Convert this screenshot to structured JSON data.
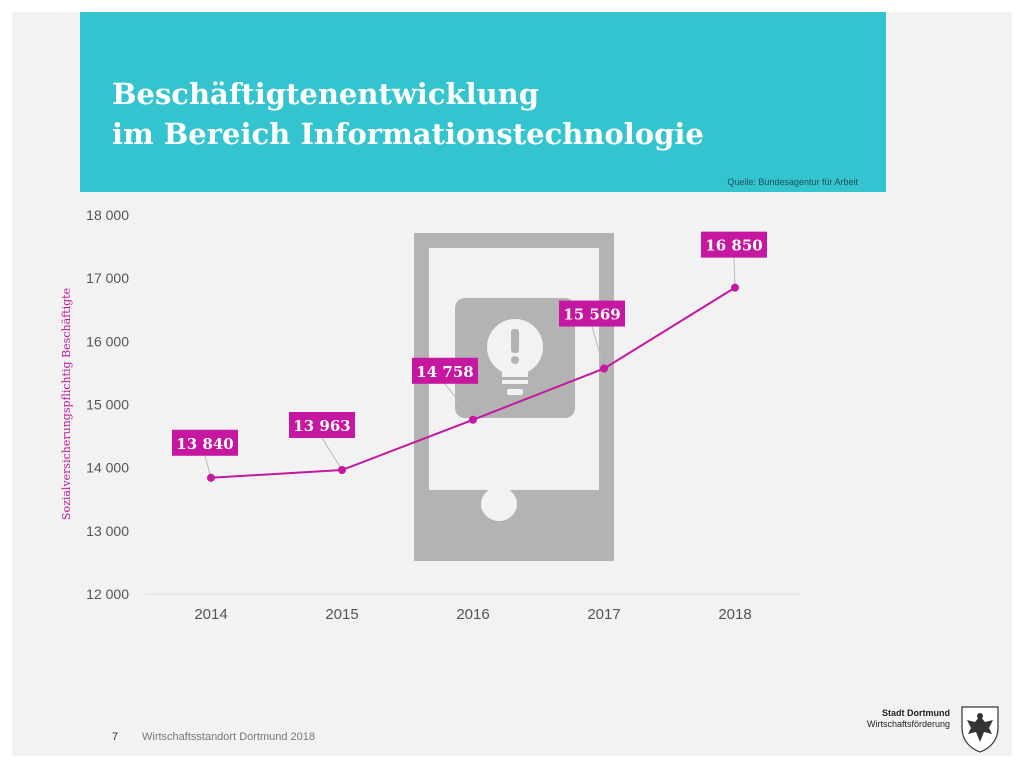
{
  "header": {
    "title_line1": "Beschäftigtenentwicklung",
    "title_line2": "im Bereich Informationstechnologie",
    "source": "Quelle: Bundesagentur für Arbeit"
  },
  "footer": {
    "page_number": "7",
    "text": "Wirtschaftsstandort Dortmund 2018"
  },
  "logo": {
    "name": "Stadt Dortmund",
    "subtitle": "Wirtschaftsförderung"
  },
  "colors": {
    "header": "#33c4cf",
    "series": "#c5179f",
    "label_box": "#c5179f",
    "background": "#f2f2f2",
    "illustration": "#b3b3b3"
  },
  "chart_data": {
    "type": "line",
    "title": "Beschäftigtenentwicklung im Bereich Informationstechnologie",
    "xlabel": "",
    "ylabel": "Sozialversicherungspflichtig Beschäftigte",
    "ylim": [
      12000,
      18000
    ],
    "yticks": [
      12000,
      13000,
      14000,
      15000,
      16000,
      17000,
      18000
    ],
    "ytick_labels": [
      "12 000",
      "13 000",
      "14 000",
      "15 000",
      "16 000",
      "17 000",
      "18 000"
    ],
    "categories": [
      "2014",
      "2015",
      "2016",
      "2017",
      "2018"
    ],
    "series": [
      {
        "values": [
          13840,
          13963,
          14758,
          15569,
          16850
        ],
        "labels": [
          "13 840",
          "13 963",
          "14 758",
          "15 569",
          "16 850"
        ]
      }
    ],
    "grid": false,
    "legend": "none",
    "illustration": "smartphone-lightbulb-icon"
  }
}
